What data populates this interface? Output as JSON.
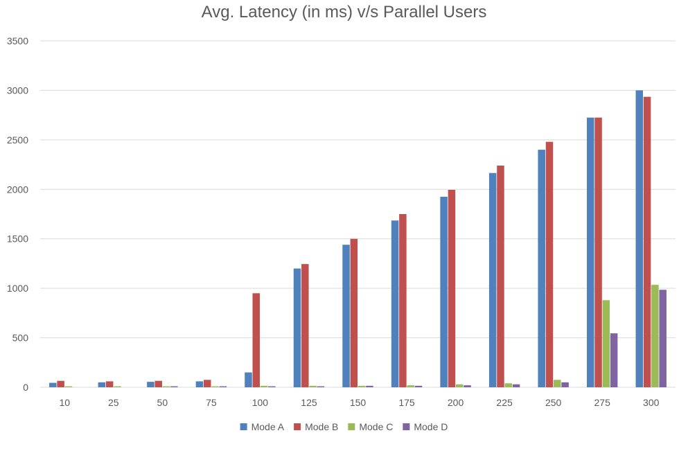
{
  "chart_data": {
    "type": "bar",
    "title": "Avg. Latency (in ms) v/s Parallel Users",
    "xlabel": "",
    "ylabel": "",
    "ylim": [
      0,
      3500
    ],
    "yticks": [
      0,
      500,
      1000,
      1500,
      2000,
      2500,
      3000,
      3500
    ],
    "grid": true,
    "legend_position": "bottom",
    "categories": [
      "10",
      "25",
      "50",
      "75",
      "100",
      "125",
      "150",
      "175",
      "200",
      "225",
      "250",
      "275",
      "300"
    ],
    "series": [
      {
        "name": "Mode A",
        "color": "#4F81BD",
        "values": [
          45,
          50,
          55,
          60,
          150,
          1200,
          1440,
          1685,
          1925,
          2165,
          2400,
          2725,
          3000
        ]
      },
      {
        "name": "Mode B",
        "color": "#C0504D",
        "values": [
          65,
          60,
          65,
          75,
          950,
          1245,
          1500,
          1750,
          1995,
          2240,
          2480,
          2725,
          2935
        ]
      },
      {
        "name": "Mode C",
        "color": "#9BBB59",
        "values": [
          10,
          10,
          10,
          10,
          15,
          15,
          15,
          20,
          30,
          40,
          75,
          880,
          1035
        ]
      },
      {
        "name": "Mode D",
        "color": "#8064A2",
        "values": [
          0,
          0,
          10,
          10,
          10,
          10,
          15,
          15,
          20,
          30,
          50,
          545,
          985
        ]
      }
    ]
  }
}
